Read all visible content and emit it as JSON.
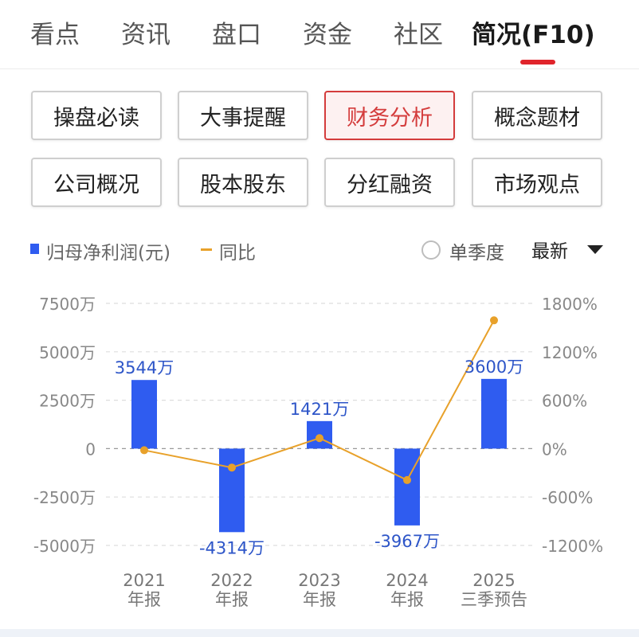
{
  "tabs": [
    {
      "label": "看点",
      "active": false
    },
    {
      "label": "资讯",
      "active": false
    },
    {
      "label": "盘口",
      "active": false
    },
    {
      "label": "资金",
      "active": false
    },
    {
      "label": "社区",
      "active": false
    },
    {
      "label": "简况(F10)",
      "active": true
    }
  ],
  "sections": [
    {
      "label": "操盘必读",
      "active": false
    },
    {
      "label": "大事提醒",
      "active": false
    },
    {
      "label": "财务分析",
      "active": true
    },
    {
      "label": "概念题材",
      "active": false
    },
    {
      "label": "公司概况",
      "active": false
    },
    {
      "label": "股本股东",
      "active": false
    },
    {
      "label": "分红融资",
      "active": false
    },
    {
      "label": "市场观点",
      "active": false
    }
  ],
  "legend": {
    "bar_label": "归母净利润(元)",
    "line_label": "同比",
    "bar_color": "#2f5cf0",
    "line_color": "#e8a12a"
  },
  "controls": {
    "quarter_toggle_label": "单季度",
    "quarter_toggle_checked": false,
    "period_select_value": "最新"
  },
  "chart_data": {
    "type": "bar",
    "categories": [
      [
        "2021",
        "年报"
      ],
      [
        "2022",
        "年报"
      ],
      [
        "2023",
        "年报"
      ],
      [
        "2024",
        "年报"
      ],
      [
        "2025",
        "三季预告"
      ]
    ],
    "series": [
      {
        "name": "归母净利润(元)",
        "type": "bar",
        "axis": "left",
        "values": [
          3544,
          -4314,
          1421,
          -3967,
          3600
        ],
        "unit": "万",
        "labels": [
          "3544万",
          "-4314万",
          "1421万",
          "-3967万",
          "3600万"
        ]
      },
      {
        "name": "同比",
        "type": "line",
        "axis": "right",
        "values": [
          -20,
          -235,
          130,
          -390,
          1590
        ],
        "unit": "%"
      }
    ],
    "y_left": {
      "ticks": [
        7500,
        5000,
        2500,
        0,
        -2500,
        -5000
      ],
      "tick_labels": [
        "7500万",
        "5000万",
        "2500万",
        "0",
        "-2500万",
        "-5000万"
      ],
      "range": [
        -5000,
        7500
      ]
    },
    "y_right": {
      "ticks": [
        1800,
        1200,
        600,
        0,
        -600,
        -1200
      ],
      "tick_labels": [
        "1800%",
        "1200%",
        "600%",
        "0%",
        "-600%",
        "-1200%"
      ],
      "range": [
        -1200,
        1800
      ]
    },
    "grid": true,
    "legend_position": "top-left"
  }
}
